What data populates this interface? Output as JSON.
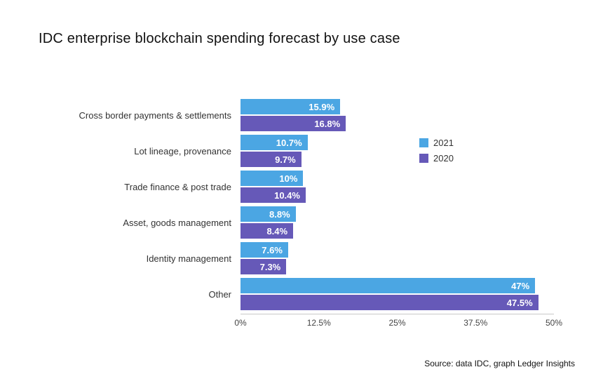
{
  "title": "IDC enterprise blockchain spending forecast by use case",
  "source": "Source: data IDC, graph Ledger Insights",
  "chart_data": {
    "type": "bar",
    "orientation": "horizontal",
    "title": "IDC enterprise blockchain spending forecast by use case",
    "categories": [
      "Cross border payments & settlements",
      "Lot lineage, provenance",
      "Trade finance & post trade",
      "Asset, goods management",
      "Identity management",
      "Other"
    ],
    "series": [
      {
        "name": "2021",
        "color": "#4BA6E3",
        "values": [
          15.9,
          10.7,
          10,
          8.8,
          7.6,
          47
        ],
        "labels": [
          "15.9%",
          "10.7%",
          "10%",
          "8.8%",
          "7.6%",
          "47%"
        ]
      },
      {
        "name": "2020",
        "color": "#6659B8",
        "values": [
          16.8,
          9.7,
          10.4,
          8.4,
          7.3,
          47.5
        ],
        "labels": [
          "16.8%",
          "9.7%",
          "10.4%",
          "8.4%",
          "7.3%",
          "47.5%"
        ]
      }
    ],
    "x_ticks": [
      "0%",
      "12.5%",
      "25%",
      "37.5%",
      "50%"
    ],
    "xlim": [
      0,
      50
    ],
    "grid": false,
    "legend_position": "right"
  }
}
